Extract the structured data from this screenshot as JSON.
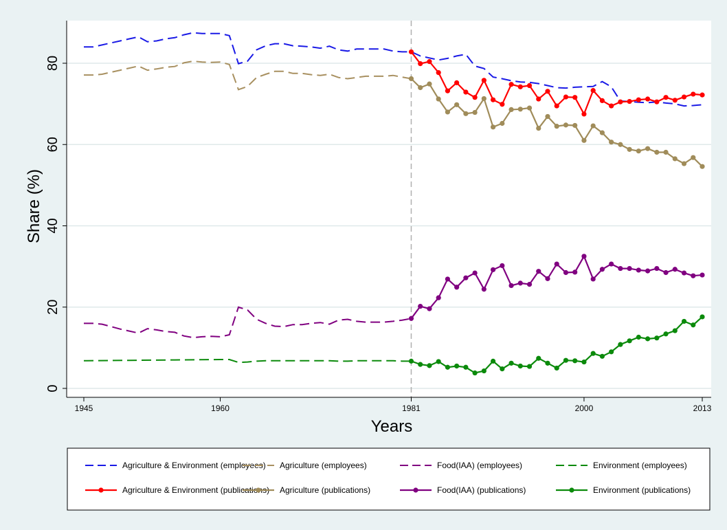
{
  "chart_data": {
    "type": "line",
    "title": "",
    "xlabel": "Years",
    "ylabel": "Share (%)",
    "xlim": [
      1943,
      2014.5
    ],
    "ylim": [
      -1,
      91
    ],
    "x_ticks": [
      1945,
      1960,
      1981,
      2000,
      2013
    ],
    "y_ticks": [
      0,
      20,
      40,
      60,
      80
    ],
    "reference_line_x": 1981,
    "grid": "horizontal",
    "legend_position": "bottom",
    "colors": {
      "blue": "#1a1ae6",
      "tan": "#a89060",
      "purple": "#800080",
      "green": "#0b8a0b",
      "red": "#ff0000",
      "olive": "#a08c5a",
      "refline": "#b0b0b0",
      "grid": "#dfe9ea",
      "background": "#eaf2f3",
      "plot_bg": "#ffffff"
    },
    "series": [
      {
        "name": "Agriculture & Environment (employees)",
        "style": "dashed",
        "color": "#1a1ae6",
        "x": [
          1945,
          1946,
          1947,
          1948,
          1949,
          1950,
          1951,
          1952,
          1953,
          1954,
          1955,
          1956,
          1957,
          1958,
          1959,
          1960,
          1961,
          1962,
          1963,
          1964,
          1965,
          1966,
          1967,
          1968,
          1969,
          1970,
          1971,
          1972,
          1973,
          1974,
          1975,
          1976,
          1977,
          1978,
          1979,
          1980,
          1981,
          1982,
          1983,
          1984,
          1985,
          1986,
          1987,
          1988,
          1989,
          1990,
          1991,
          1992,
          1993,
          1994,
          1995,
          1996,
          1997,
          1998,
          1999,
          2000,
          2001,
          2002,
          2003,
          2004,
          2005,
          2006,
          2007,
          2008,
          2009,
          2010,
          2011,
          2012,
          2013
        ],
        "y": [
          84,
          84,
          84.5,
          85,
          85.5,
          86,
          86.5,
          85.3,
          85.5,
          86,
          86.3,
          87,
          87.5,
          87.3,
          87.3,
          87.3,
          86.8,
          79.9,
          80.5,
          83.3,
          84.3,
          84.8,
          84.8,
          84.3,
          84.2,
          84,
          83.7,
          84.2,
          83.3,
          83,
          83.5,
          83.5,
          83.5,
          83.5,
          83,
          82.8,
          82.8,
          81.8,
          81.3,
          80.8,
          81.2,
          81.8,
          82.2,
          79.3,
          78.7,
          76.6,
          76.2,
          75.7,
          75.4,
          75.3,
          75,
          74.5,
          74,
          73.9,
          74.1,
          74.2,
          74.3,
          75.5,
          74.2,
          70.7,
          70.6,
          70.4,
          70.3,
          70.5,
          70.2,
          70,
          69.5,
          69.6,
          69.8
        ]
      },
      {
        "name": "Agriculture (employees)",
        "style": "dashed",
        "color": "#a89060",
        "x": [
          1945,
          1946,
          1947,
          1948,
          1949,
          1950,
          1951,
          1952,
          1953,
          1954,
          1955,
          1956,
          1957,
          1958,
          1959,
          1960,
          1961,
          1962,
          1963,
          1964,
          1965,
          1966,
          1967,
          1968,
          1969,
          1970,
          1971,
          1972,
          1973,
          1974,
          1975,
          1976,
          1977,
          1978,
          1979,
          1980,
          1981
        ],
        "y": [
          77.1,
          77.1,
          77.3,
          77.8,
          78.3,
          78.8,
          79.3,
          78.3,
          78.6,
          79,
          79.2,
          80.1,
          80.5,
          80.3,
          80.2,
          80.3,
          79.7,
          73.5,
          74.3,
          76.5,
          77.3,
          78,
          78,
          77.5,
          77.5,
          77.2,
          77,
          77.3,
          76.5,
          76.2,
          76.5,
          76.8,
          76.8,
          76.8,
          77,
          76.6,
          76.2
        ]
      },
      {
        "name": "Food(IAA) (employees)",
        "style": "dashed",
        "color": "#800080",
        "x": [
          1945,
          1946,
          1947,
          1948,
          1949,
          1950,
          1951,
          1952,
          1953,
          1954,
          1955,
          1956,
          1957,
          1958,
          1959,
          1960,
          1961,
          1962,
          1963,
          1964,
          1965,
          1966,
          1967,
          1968,
          1969,
          1970,
          1971,
          1972,
          1973,
          1974,
          1975,
          1976,
          1977,
          1978,
          1979,
          1980,
          1981
        ],
        "y": [
          16,
          16,
          15.8,
          15.2,
          14.6,
          14.1,
          13.6,
          14.7,
          14.4,
          14,
          13.8,
          12.9,
          12.5,
          12.7,
          12.8,
          12.7,
          13.2,
          20,
          19.3,
          17,
          16,
          15.3,
          15.2,
          15.7,
          15.7,
          16,
          16.2,
          15.8,
          16.8,
          17,
          16.5,
          16.3,
          16.3,
          16.3,
          16.5,
          16.8,
          17.2
        ]
      },
      {
        "name": "Environment (employees)",
        "style": "dashed",
        "color": "#0b8a0b",
        "x": [
          1945,
          1950,
          1955,
          1960,
          1961,
          1962,
          1963,
          1964,
          1965,
          1966,
          1967,
          1968,
          1969,
          1970,
          1971,
          1972,
          1973,
          1974,
          1975,
          1976,
          1977,
          1978,
          1979,
          1980,
          1981
        ],
        "y": [
          6.8,
          6.9,
          7,
          7.1,
          7.1,
          6.4,
          6.5,
          6.7,
          6.8,
          6.8,
          6.8,
          6.8,
          6.8,
          6.8,
          6.8,
          6.8,
          6.7,
          6.7,
          6.8,
          6.8,
          6.8,
          6.8,
          6.8,
          6.7,
          6.7
        ]
      },
      {
        "name": "Agriculture & Environment (publications)",
        "style": "solid-marker",
        "color": "#ff0000",
        "x": [
          1981,
          1982,
          1983,
          1984,
          1985,
          1986,
          1987,
          1988,
          1989,
          1990,
          1991,
          1992,
          1993,
          1994,
          1995,
          1996,
          1997,
          1998,
          1999,
          2000,
          2001,
          2002,
          2003,
          2004,
          2005,
          2006,
          2007,
          2008,
          2009,
          2010,
          2011,
          2012,
          2013
        ],
        "y": [
          82.8,
          79.9,
          80.4,
          77.7,
          73.2,
          75.2,
          72.9,
          71.6,
          75.8,
          71,
          69.9,
          74.8,
          74.2,
          74.5,
          71.2,
          73.1,
          69.5,
          71.7,
          71.6,
          67.5,
          73.3,
          70.8,
          69.5,
          70.5,
          70.6,
          71,
          71.2,
          70.5,
          71.6,
          70.9,
          71.7,
          72.4,
          72.2
        ]
      },
      {
        "name": "Agriculture (publications)",
        "style": "solid-marker",
        "color": "#a08c5a",
        "x": [
          1981,
          1982,
          1983,
          1984,
          1985,
          1986,
          1987,
          1988,
          1989,
          1990,
          1991,
          1992,
          1993,
          1994,
          1995,
          1996,
          1997,
          1998,
          1999,
          2000,
          2001,
          2002,
          2003,
          2004,
          2005,
          2006,
          2007,
          2008,
          2009,
          2010,
          2011,
          2012,
          2013
        ],
        "y": [
          76.2,
          74,
          74.9,
          71.2,
          68,
          69.8,
          67.6,
          67.9,
          71.3,
          64.3,
          65.2,
          68.6,
          68.7,
          69,
          64,
          66.9,
          64.5,
          64.8,
          64.7,
          61,
          64.6,
          62.9,
          60.6,
          60,
          58.8,
          58.4,
          59,
          58.1,
          58.1,
          56.5,
          55.3,
          56.8,
          54.6
        ]
      },
      {
        "name": "Food(IAA) (publications)",
        "style": "solid-marker",
        "color": "#800080",
        "x": [
          1981,
          1982,
          1983,
          1984,
          1985,
          1986,
          1987,
          1988,
          1989,
          1990,
          1991,
          1992,
          1993,
          1994,
          1995,
          1996,
          1997,
          1998,
          1999,
          2000,
          2001,
          2002,
          2003,
          2004,
          2005,
          2006,
          2007,
          2008,
          2009,
          2010,
          2011,
          2012,
          2013
        ],
        "y": [
          17.2,
          20.2,
          19.6,
          22.3,
          26.9,
          24.9,
          27.2,
          28.4,
          24.4,
          29.2,
          30.2,
          25.3,
          25.9,
          25.6,
          28.8,
          27,
          30.6,
          28.5,
          28.6,
          32.5,
          26.9,
          29.3,
          30.6,
          29.5,
          29.5,
          29.1,
          28.9,
          29.5,
          28.5,
          29.3,
          28.4,
          27.7,
          27.9
        ]
      },
      {
        "name": "Environment (publications)",
        "style": "solid-marker",
        "color": "#0b8a0b",
        "x": [
          1981,
          1982,
          1983,
          1984,
          1985,
          1986,
          1987,
          1988,
          1989,
          1990,
          1991,
          1992,
          1993,
          1994,
          1995,
          1996,
          1997,
          1998,
          1999,
          2000,
          2001,
          2002,
          2003,
          2004,
          2005,
          2006,
          2007,
          2008,
          2009,
          2010,
          2011,
          2012,
          2013
        ],
        "y": [
          6.7,
          5.9,
          5.6,
          6.6,
          5.2,
          5.5,
          5.2,
          3.8,
          4.3,
          6.7,
          4.8,
          6.2,
          5.5,
          5.4,
          7.4,
          6.2,
          5,
          6.9,
          6.8,
          6.5,
          8.6,
          7.9,
          9,
          10.8,
          11.7,
          12.6,
          12.2,
          12.4,
          13.4,
          14.2,
          16.5,
          15.6,
          17.6
        ]
      }
    ]
  }
}
